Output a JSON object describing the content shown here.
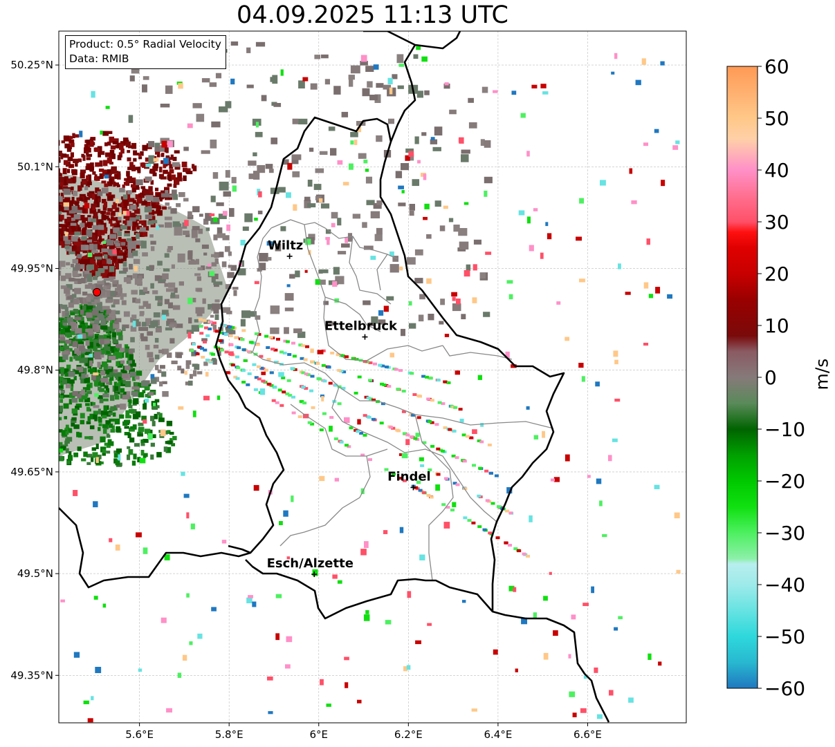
{
  "title": "04.09.2025 11:13 UTC",
  "info": {
    "product": "Product: 0.5° Radial Velocity",
    "source": "Data: RMIB"
  },
  "map": {
    "lon_range": [
      5.42,
      6.82
    ],
    "lat_range": [
      49.28,
      50.3
    ],
    "lat_ticks": [
      {
        "value": 50.25,
        "label": "50.25°N"
      },
      {
        "value": 50.1,
        "label": "50.1°N"
      },
      {
        "value": 49.95,
        "label": "49.95°N"
      },
      {
        "value": 49.8,
        "label": "49.8°N"
      },
      {
        "value": 49.65,
        "label": "49.65°N"
      },
      {
        "value": 49.5,
        "label": "49.5°N"
      },
      {
        "value": 49.35,
        "label": "49.35°N"
      }
    ],
    "lon_ticks": [
      {
        "value": 5.6,
        "label": "5.6°E"
      },
      {
        "value": 5.8,
        "label": "5.8°E"
      },
      {
        "value": 6.0,
        "label": "6°E"
      },
      {
        "value": 6.2,
        "label": "6.2°E"
      },
      {
        "value": 6.4,
        "label": "6.4°E"
      },
      {
        "value": 6.6,
        "label": "6.6°E"
      }
    ],
    "grid": true,
    "radar_site": {
      "lon": 5.505,
      "lat": 49.915
    },
    "cities": [
      {
        "name": "Wiltz",
        "lon": 5.935,
        "lat": 49.968
      },
      {
        "name": "Ettelbruck",
        "lon": 6.103,
        "lat": 49.849
      },
      {
        "name": "Findel",
        "lon": 6.211,
        "lat": 49.627
      },
      {
        "name": "Esch/Alzette",
        "lon": 5.99,
        "lat": 49.499
      }
    ]
  },
  "colorbar": {
    "label": "m/s",
    "min": -60,
    "max": 60,
    "ticks": [
      60,
      50,
      40,
      30,
      20,
      10,
      0,
      -10,
      -20,
      -30,
      -40,
      -50,
      -60
    ],
    "tick_labels": [
      "60",
      "50",
      "40",
      "30",
      "20",
      "10",
      "0",
      "−10",
      "−20",
      "−30",
      "−40",
      "−50",
      "−60"
    ],
    "stops": [
      {
        "value": -60,
        "color": "#1f78c0"
      },
      {
        "value": -55,
        "color": "#28b8d0"
      },
      {
        "value": -50,
        "color": "#2ed8dc"
      },
      {
        "value": -45,
        "color": "#66e3e2"
      },
      {
        "value": -40,
        "color": "#9eeaea"
      },
      {
        "value": -36,
        "color": "#b8eeee"
      },
      {
        "value": -35,
        "color": "#8cf0a8"
      },
      {
        "value": -30,
        "color": "#4df060"
      },
      {
        "value": -25,
        "color": "#10e010"
      },
      {
        "value": -20,
        "color": "#00c800"
      },
      {
        "value": -15,
        "color": "#00a000"
      },
      {
        "value": -10,
        "color": "#006400"
      },
      {
        "value": -5,
        "color": "#5a8a5a"
      },
      {
        "value": 0,
        "color": "#867a7a"
      },
      {
        "value": 5,
        "color": "#8a5a62"
      },
      {
        "value": 8,
        "color": "#7a0a0a"
      },
      {
        "value": 15,
        "color": "#9a0000"
      },
      {
        "value": 20,
        "color": "#c80000"
      },
      {
        "value": 25,
        "color": "#e00000"
      },
      {
        "value": 28,
        "color": "#ff1010"
      },
      {
        "value": 30,
        "color": "#ff5068"
      },
      {
        "value": 35,
        "color": "#ff7090"
      },
      {
        "value": 40,
        "color": "#ff90c8"
      },
      {
        "value": 43,
        "color": "#ffb0b8"
      },
      {
        "value": 46,
        "color": "#ffd0a8"
      },
      {
        "value": 50,
        "color": "#ffc888"
      },
      {
        "value": 55,
        "color": "#ffb070"
      },
      {
        "value": 60,
        "color": "#ff9a55"
      }
    ]
  }
}
